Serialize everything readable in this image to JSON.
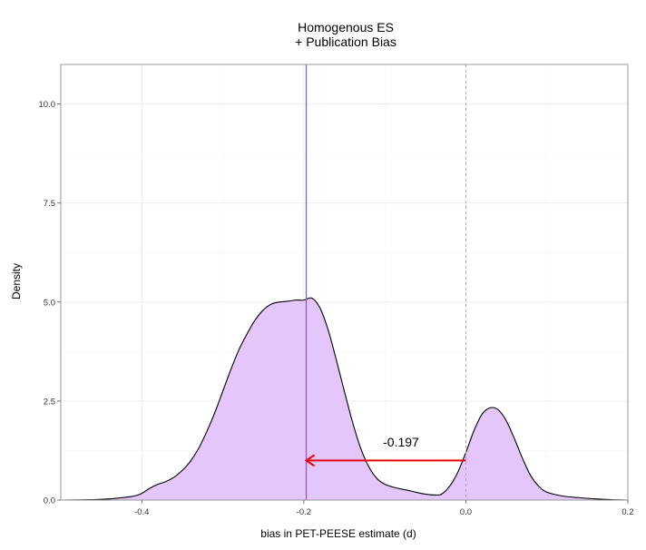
{
  "chart_data": {
    "type": "area",
    "title": "Homogenous ES\n+ Publication Bias",
    "title_lines": [
      "Homogenous ES",
      "+ Publication Bias"
    ],
    "xlabel": "bias in PET-PEESE estimate (d)",
    "ylabel": "Density",
    "xlim": [
      -0.5,
      0.2
    ],
    "ylim": [
      0,
      11
    ],
    "x_ticks": [
      -0.4,
      -0.2,
      0.0,
      0.2
    ],
    "x_tick_labels": [
      "-0.4",
      "-0.2",
      "0.0",
      "0.2"
    ],
    "y_ticks": [
      0,
      2.5,
      5.0,
      7.5,
      10.0
    ],
    "y_tick_labels": [
      "0.0",
      "2.5",
      "5.0",
      "7.5",
      "10.0"
    ],
    "grid": true,
    "series": [
      {
        "x": [
          -0.5,
          -0.46,
          -0.44,
          -0.42,
          -0.41,
          -0.4,
          -0.39,
          -0.38,
          -0.37,
          -0.36,
          -0.35,
          -0.34,
          -0.33,
          -0.32,
          -0.31,
          -0.3,
          -0.29,
          -0.28,
          -0.27,
          -0.26,
          -0.25,
          -0.24,
          -0.23,
          -0.22,
          -0.21,
          -0.2,
          -0.19,
          -0.18,
          -0.17,
          -0.16,
          -0.15,
          -0.14,
          -0.13,
          -0.12,
          -0.11,
          -0.1,
          -0.09,
          -0.08,
          -0.07,
          -0.06,
          -0.05,
          -0.04,
          -0.03,
          -0.02,
          -0.01,
          0.0,
          0.01,
          0.02,
          0.03,
          0.04,
          0.05,
          0.06,
          0.07,
          0.08,
          0.09,
          0.1,
          0.12,
          0.14,
          0.16,
          0.18,
          0.2
        ],
        "y": [
          0.0,
          0.01,
          0.03,
          0.07,
          0.1,
          0.17,
          0.3,
          0.4,
          0.47,
          0.58,
          0.75,
          0.98,
          1.3,
          1.72,
          2.2,
          2.75,
          3.3,
          3.8,
          4.2,
          4.55,
          4.8,
          4.95,
          5.0,
          5.02,
          5.05,
          5.05,
          5.1,
          4.85,
          4.3,
          3.55,
          2.75,
          1.98,
          1.32,
          0.85,
          0.55,
          0.4,
          0.33,
          0.28,
          0.24,
          0.19,
          0.15,
          0.13,
          0.15,
          0.35,
          0.7,
          1.2,
          1.75,
          2.17,
          2.33,
          2.28,
          2.0,
          1.55,
          1.05,
          0.62,
          0.35,
          0.2,
          0.1,
          0.06,
          0.03,
          0.01,
          0.0
        ],
        "fill": "#e4c6fb",
        "stroke": "#000000"
      }
    ],
    "reference_lines": [
      {
        "axis": "x",
        "value": -0.197,
        "color": "#a64dcc",
        "style": "solid"
      },
      {
        "axis": "x",
        "value": 0.0,
        "color": "#aaaaaa",
        "style": "dashed"
      }
    ],
    "arrow": {
      "from": [
        0.0,
        1.0
      ],
      "to": [
        -0.197,
        1.0
      ],
      "color": "#e8000b"
    },
    "annotation": {
      "text": "-0.197",
      "x": -0.08,
      "y": 1.35
    }
  }
}
